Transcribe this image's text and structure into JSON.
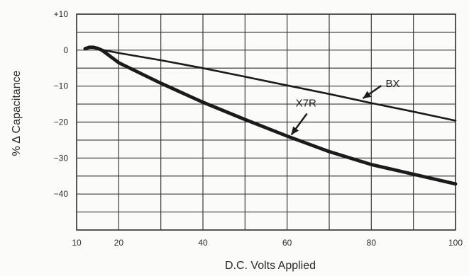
{
  "chart_data": {
    "type": "line",
    "title": "",
    "xlabel": "D.C. Volts Applied",
    "ylabel": "% Δ Capacitance",
    "xlim": [
      10,
      100
    ],
    "ylim": [
      -50,
      10
    ],
    "x_ticks": [
      10,
      20,
      40,
      60,
      80,
      100
    ],
    "y_ticks": [
      10,
      0,
      -10,
      -20,
      -30,
      -40
    ],
    "x_tick_labels": [
      "10",
      "20",
      "40",
      "60",
      "80",
      "100"
    ],
    "y_tick_labels": [
      "+10",
      "0",
      "−10",
      "−20",
      "−30",
      "−40"
    ],
    "grid": true,
    "series": [
      {
        "name": "BX",
        "x": [
          12,
          13,
          14,
          15,
          16,
          20,
          30,
          40,
          50,
          60,
          70,
          80,
          90,
          100
        ],
        "y": [
          0.4,
          0.8,
          0.8,
          0.5,
          0.1,
          -0.8,
          -2.8,
          -5.0,
          -7.4,
          -9.8,
          -12.2,
          -14.7,
          -17.1,
          -19.6
        ]
      },
      {
        "name": "X7R",
        "x": [
          12,
          13,
          14,
          15,
          16,
          20,
          30,
          40,
          50,
          60,
          70,
          80,
          90,
          100
        ],
        "y": [
          0.4,
          0.8,
          0.8,
          0.5,
          0.0,
          -3.5,
          -9.2,
          -14.5,
          -19.3,
          -23.9,
          -28.2,
          -31.8,
          -34.5,
          -37.2
        ]
      }
    ],
    "annotations": [
      {
        "text": "BX",
        "series": "BX"
      },
      {
        "text": "X7R",
        "series": "X7R"
      }
    ],
    "colors": {
      "grid": "#3a3a3a",
      "line": "#1b1b1b",
      "background": "#fbfbfa"
    }
  }
}
